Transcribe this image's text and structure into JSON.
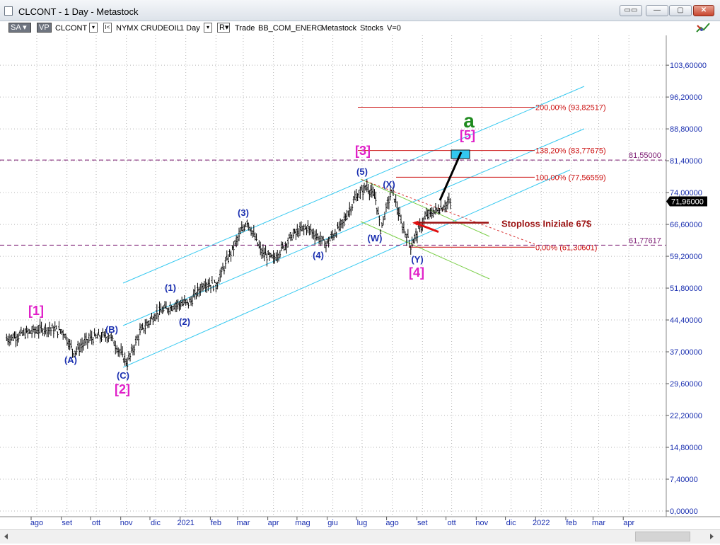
{
  "window": {
    "title": "CLCONT - 1 Day - Metastock",
    "buttons": [
      "restore-down",
      "minimize",
      "maximize",
      "close"
    ]
  },
  "toolbar": {
    "sa_label": "SA",
    "vp_label": "VP",
    "symbol": "CLCONT",
    "exchange": "NYMX CRUDEOIL",
    "period": "1 Day",
    "mode_box": "R",
    "mode": "Trade",
    "template": "BB_COM_ENERG",
    "source": "Metastock",
    "type": "Stocks",
    "volume": "V=0"
  },
  "chart_data": {
    "type": "line",
    "title": "",
    "xlabel": "",
    "ylabel": "",
    "ylim": [
      0,
      107.5
    ],
    "price_axis_ticks": [
      "103,60000",
      "96,20000",
      "88,80000",
      "81,40000",
      "74,00000",
      "66,60000",
      "59,20000",
      "51,80000",
      "44,40000",
      "37,00000",
      "29,60000",
      "22,20000",
      "14,80000",
      "7,40000",
      "0,00000"
    ],
    "price_axis_values": [
      103.6,
      96.2,
      88.8,
      81.4,
      74.0,
      66.6,
      59.2,
      51.8,
      44.4,
      37.0,
      29.6,
      22.2,
      14.8,
      7.4,
      0.0
    ],
    "time_axis_ticks": [
      "ago",
      "set",
      "ott",
      "nov",
      "dic",
      "2021",
      "feb",
      "mar",
      "apr",
      "mag",
      "giu",
      "lug",
      "ago",
      "set",
      "ott",
      "nov",
      "dic",
      "2022",
      "feb",
      "mar",
      "apr"
    ],
    "current_price_label": "71,96000",
    "current_price": 71.96,
    "series": [
      {
        "name": "CLCONT",
        "x": [
          "2020-07-01",
          "2020-07-20",
          "2020-08-10",
          "2020-08-28",
          "2020-09-08",
          "2020-09-25",
          "2020-10-15",
          "2020-10-28",
          "2020-11-02",
          "2020-11-15",
          "2020-12-01",
          "2020-12-20",
          "2021-01-05",
          "2021-01-20",
          "2021-02-01",
          "2021-02-15",
          "2021-03-05",
          "2021-03-20",
          "2021-04-01",
          "2021-04-20",
          "2021-05-05",
          "2021-05-25",
          "2021-06-10",
          "2021-06-25",
          "2021-07-06",
          "2021-07-15",
          "2021-07-20",
          "2021-07-30",
          "2021-08-02",
          "2021-08-10",
          "2021-08-20",
          "2021-09-05",
          "2021-09-20",
          "2021-10-01"
        ],
        "values": [
          40.0,
          41.3,
          42.5,
          41.8,
          36.9,
          40.2,
          40.8,
          36.0,
          34.5,
          41.5,
          45.8,
          47.9,
          48.5,
          53.0,
          52.5,
          59.5,
          67.5,
          60.0,
          58.5,
          64.0,
          66.0,
          62.0,
          66.5,
          73.0,
          75.5,
          72.5,
          65.5,
          73.5,
          74.0,
          67.0,
          61.8,
          68.5,
          70.5,
          71.96
        ]
      }
    ],
    "annotations": [
      {
        "text": "[1]",
        "color": "#e020c8"
      },
      {
        "text": "(A)",
        "color": "#1a2fb0"
      },
      {
        "text": "(B)",
        "color": "#1a2fb0"
      },
      {
        "text": "(C)",
        "color": "#1a2fb0"
      },
      {
        "text": "[2]",
        "color": "#e020c8"
      },
      {
        "text": "(1)",
        "color": "#1a2fb0"
      },
      {
        "text": "(2)",
        "color": "#1a2fb0"
      },
      {
        "text": "(3)",
        "color": "#1a2fb0"
      },
      {
        "text": "(4)",
        "color": "#1a2fb0"
      },
      {
        "text": "(5)",
        "color": "#1a2fb0"
      },
      {
        "text": "[3]",
        "color": "#e020c8"
      },
      {
        "text": "(W)",
        "color": "#1a2fb0"
      },
      {
        "text": "(X)",
        "color": "#1a2fb0"
      },
      {
        "text": "(Y)",
        "color": "#1a2fb0"
      },
      {
        "text": "[4]",
        "color": "#e020c8"
      },
      {
        "text": "[5]",
        "color": "#e020c8"
      },
      {
        "text": "a",
        "color": "#1e8a1e"
      }
    ],
    "fibonacci_levels": [
      {
        "label": "200,00% (93,82517)",
        "price": 93.82517
      },
      {
        "label": "138,20% (83,77675)",
        "price": 83.77675
      },
      {
        "label": "100,00% (77,56559)",
        "price": 77.56559
      },
      {
        "label": "0,00% (61,30601)",
        "price": 61.30601
      }
    ],
    "horizontal_levels": [
      {
        "label": "81,55000",
        "price": 81.55
      },
      {
        "label": "61,77617",
        "price": 61.77617
      }
    ],
    "stoploss": {
      "text": "Stoploss Iniziale 67$",
      "price": 67.0
    },
    "colors": {
      "candles": "#000000",
      "channel": "#33c8f0",
      "correction_channel": "#7ccf4a",
      "fib": "#cc1111",
      "dashed_level": "#7b1a72",
      "axis_text": "#1a2fb0",
      "stoploss": "#9b1010"
    }
  }
}
